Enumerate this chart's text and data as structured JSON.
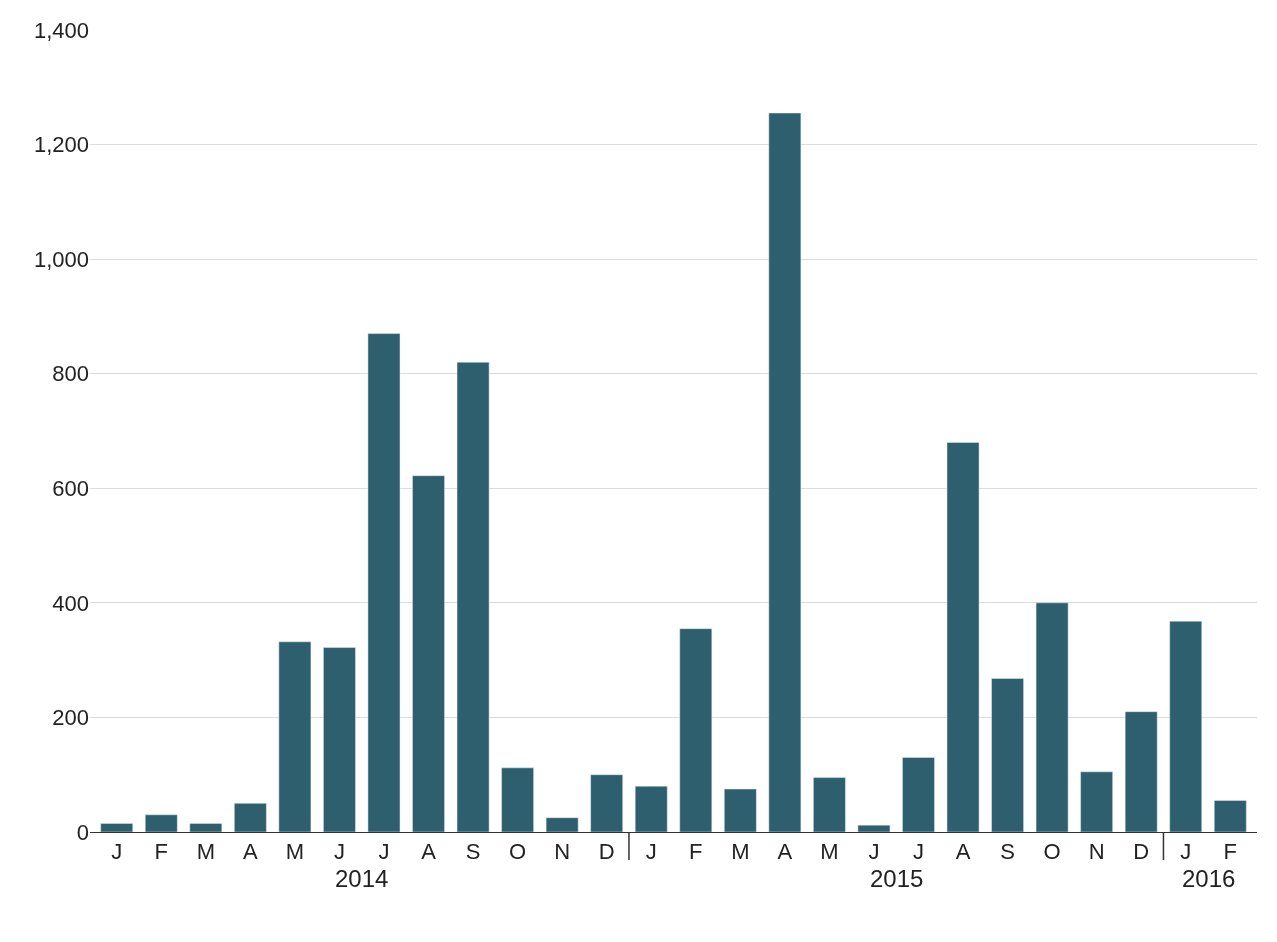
{
  "chart_data": {
    "type": "bar",
    "categories": [
      "J",
      "F",
      "M",
      "A",
      "M",
      "J",
      "J",
      "A",
      "S",
      "O",
      "N",
      "D",
      "J",
      "F",
      "M",
      "A",
      "M",
      "J",
      "J",
      "A",
      "S",
      "O",
      "N",
      "D",
      "J",
      "F"
    ],
    "values": [
      15,
      30,
      15,
      50,
      332,
      322,
      870,
      622,
      820,
      112,
      25,
      100,
      80,
      355,
      75,
      1255,
      95,
      12,
      130,
      680,
      268,
      400,
      105,
      210,
      368,
      55
    ],
    "color": "#2e5f6e",
    "ylim": [
      0,
      1400
    ],
    "yticks": [
      0,
      200,
      400,
      600,
      800,
      {
        "value": 1000,
        "label": "1,000"
      },
      {
        "value": 1200,
        "label": "1,200"
      },
      {
        "value": 1400,
        "label": "1,400"
      }
    ],
    "grid": "y",
    "legend": false,
    "annotations": [
      "2014",
      "2015",
      "2016"
    ]
  }
}
